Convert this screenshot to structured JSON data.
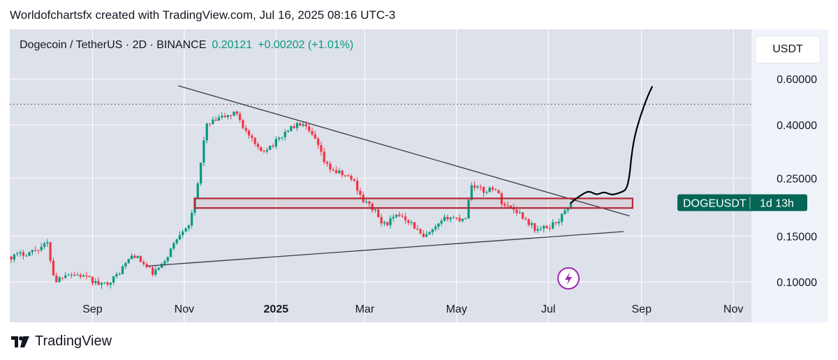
{
  "caption": "Worldofchartsfx created with TradingView.com, Jul 16, 2025 08:16 UTC-3",
  "legend": {
    "symbol": "Dogecoin / TetherUS · 2D · BINANCE",
    "price": "0.20121",
    "change": "+0.00202 (+1.01%)"
  },
  "axis_currency": "USDT",
  "ticker_label": {
    "symbol": "DOGEUSDT",
    "countdown": "1d 13h",
    "bg_color": "#056656"
  },
  "brand": "TradingView",
  "colors": {
    "up": "#089981",
    "down": "#f23645",
    "zone": "#b22833",
    "trendline": "#363a45",
    "projection": "#000000"
  },
  "chart_data": {
    "type": "candlestick",
    "title": "Dogecoin / TetherUS · 2D · BINANCE",
    "scale": "log",
    "y_ticks": [
      0.6,
      0.4,
      0.25,
      0.15,
      0.1
    ],
    "y_tick_labels": [
      "0.60000",
      "0.40000",
      "0.25000",
      "0.15000",
      "0.10000"
    ],
    "x_ticks": [
      {
        "date": "2024-09-01",
        "label": "Sep",
        "bold": false
      },
      {
        "date": "2024-11-01",
        "label": "Nov",
        "bold": false
      },
      {
        "date": "2025-01-01",
        "label": "2025",
        "bold": true
      },
      {
        "date": "2025-03-01",
        "label": "Mar",
        "bold": false
      },
      {
        "date": "2025-05-01",
        "label": "May",
        "bold": false
      },
      {
        "date": "2025-07-01",
        "label": "Jul",
        "bold": false
      },
      {
        "date": "2025-09-01",
        "label": "Sep",
        "bold": false
      },
      {
        "date": "2025-11-01",
        "label": "Nov",
        "bold": false
      }
    ],
    "x_range": [
      "2024-07-08",
      "2025-11-13"
    ],
    "y_range": [
      0.07,
      0.93
    ],
    "last_price": 0.20121,
    "dotted_level": 0.48,
    "anchors": [
      [
        "2024-07-08",
        0.125
      ],
      [
        "2024-07-20",
        0.13
      ],
      [
        "2024-08-01",
        0.14
      ],
      [
        "2024-08-06",
        0.1
      ],
      [
        "2024-08-13",
        0.108
      ],
      [
        "2024-08-23",
        0.106
      ],
      [
        "2024-09-06",
        0.097
      ],
      [
        "2024-09-15",
        0.104
      ],
      [
        "2024-09-27",
        0.128
      ],
      [
        "2024-10-10",
        0.108
      ],
      [
        "2024-10-16",
        0.115
      ],
      [
        "2024-10-29",
        0.158
      ],
      [
        "2024-11-04",
        0.168
      ],
      [
        "2024-11-10",
        0.255
      ],
      [
        "2024-11-14",
        0.395
      ],
      [
        "2024-11-24",
        0.425
      ],
      [
        "2024-12-05",
        0.445
      ],
      [
        "2024-12-10",
        0.385
      ],
      [
        "2024-12-20",
        0.315
      ],
      [
        "2024-12-30",
        0.34
      ],
      [
        "2025-01-08",
        0.385
      ],
      [
        "2025-01-17",
        0.405
      ],
      [
        "2025-01-26",
        0.35
      ],
      [
        "2025-02-02",
        0.28
      ],
      [
        "2025-02-10",
        0.262
      ],
      [
        "2025-02-20",
        0.248
      ],
      [
        "2025-02-27",
        0.205
      ],
      [
        "2025-03-06",
        0.19
      ],
      [
        "2025-03-12",
        0.165
      ],
      [
        "2025-03-24",
        0.182
      ],
      [
        "2025-03-31",
        0.168
      ],
      [
        "2025-04-08",
        0.147
      ],
      [
        "2025-04-15",
        0.158
      ],
      [
        "2025-04-24",
        0.178
      ],
      [
        "2025-05-02",
        0.174
      ],
      [
        "2025-05-06",
        0.178
      ],
      [
        "2025-05-10",
        0.238
      ],
      [
        "2025-05-18",
        0.222
      ],
      [
        "2025-05-25",
        0.232
      ],
      [
        "2025-05-31",
        0.198
      ],
      [
        "2025-06-08",
        0.19
      ],
      [
        "2025-06-13",
        0.178
      ],
      [
        "2025-06-22",
        0.158
      ],
      [
        "2025-06-30",
        0.162
      ],
      [
        "2025-07-08",
        0.175
      ],
      [
        "2025-07-14",
        0.2
      ],
      [
        "2025-07-16",
        0.20121
      ]
    ],
    "annotations": {
      "descending_trendline": {
        "from": [
          "2024-10-28",
          0.565
        ],
        "to": [
          "2025-08-24",
          0.179
        ]
      },
      "ascending_trendline": {
        "from": [
          "2024-10-07",
          0.115
        ],
        "to": [
          "2025-08-20",
          0.156
        ]
      },
      "resistance_zone": {
        "x_from": "2024-11-08",
        "x_to": "2025-08-26",
        "y_low": 0.192,
        "y_high": 0.209
      },
      "projection_path": [
        [
          "2025-07-16",
          0.201
        ],
        [
          "2025-07-22",
          0.214
        ],
        [
          "2025-07-28",
          0.224
        ],
        [
          "2025-08-02",
          0.215
        ],
        [
          "2025-08-07",
          0.222
        ],
        [
          "2025-08-12",
          0.215
        ],
        [
          "2025-08-18",
          0.22
        ],
        [
          "2025-08-22",
          0.226
        ],
        [
          "2025-08-24",
          0.255
        ],
        [
          "2025-08-25",
          0.295
        ],
        [
          "2025-08-27",
          0.355
        ],
        [
          "2025-08-31",
          0.43
        ],
        [
          "2025-09-05",
          0.515
        ],
        [
          "2025-09-08",
          0.56
        ]
      ]
    }
  }
}
